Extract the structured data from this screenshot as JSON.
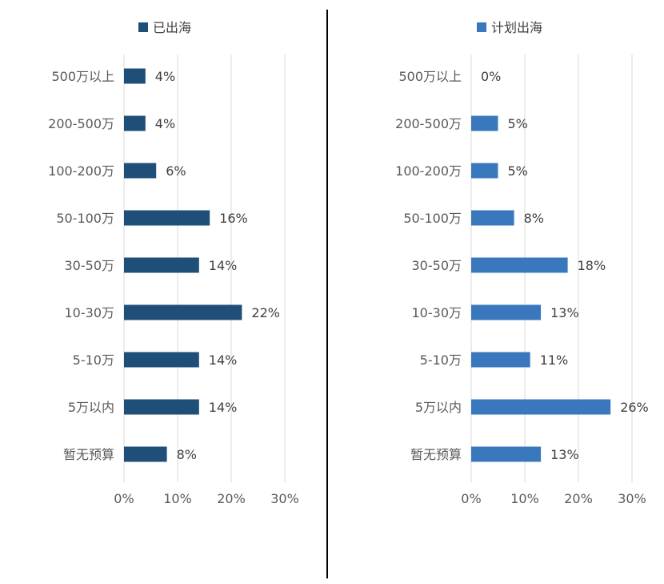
{
  "chart_data": [
    {
      "type": "bar",
      "orientation": "horizontal",
      "legend": "已出海",
      "legend_position": "top",
      "color": "#1f4e79",
      "categories": [
        "500万以上",
        "200-500万",
        "100-200万",
        "50-100万",
        "30-50万",
        "10-30万",
        "5-10万",
        "5万以内",
        "暂无预算"
      ],
      "values": [
        4,
        4,
        6,
        16,
        14,
        22,
        14,
        14,
        8
      ],
      "value_labels": [
        "4%",
        "4%",
        "6%",
        "16%",
        "14%",
        "22%",
        "14%",
        "14%",
        "8%"
      ],
      "xlim": [
        0,
        30
      ],
      "xticks": [
        "0%",
        "10%",
        "20%",
        "30%"
      ],
      "grid": true
    },
    {
      "type": "bar",
      "orientation": "horizontal",
      "legend": "计划出海",
      "legend_position": "top",
      "color": "#3a78bd",
      "categories": [
        "500万以上",
        "200-500万",
        "100-200万",
        "50-100万",
        "30-50万",
        "10-30万",
        "5-10万",
        "5万以内",
        "暂无预算"
      ],
      "values": [
        0,
        5,
        5,
        8,
        18,
        13,
        11,
        26,
        13
      ],
      "value_labels": [
        "0%",
        "5%",
        "5%",
        "8%",
        "18%",
        "13%",
        "11%",
        "26%",
        "13%"
      ],
      "xlim": [
        0,
        30
      ],
      "xticks": [
        "0%",
        "10%",
        "20%",
        "30%"
      ],
      "grid": true
    }
  ]
}
